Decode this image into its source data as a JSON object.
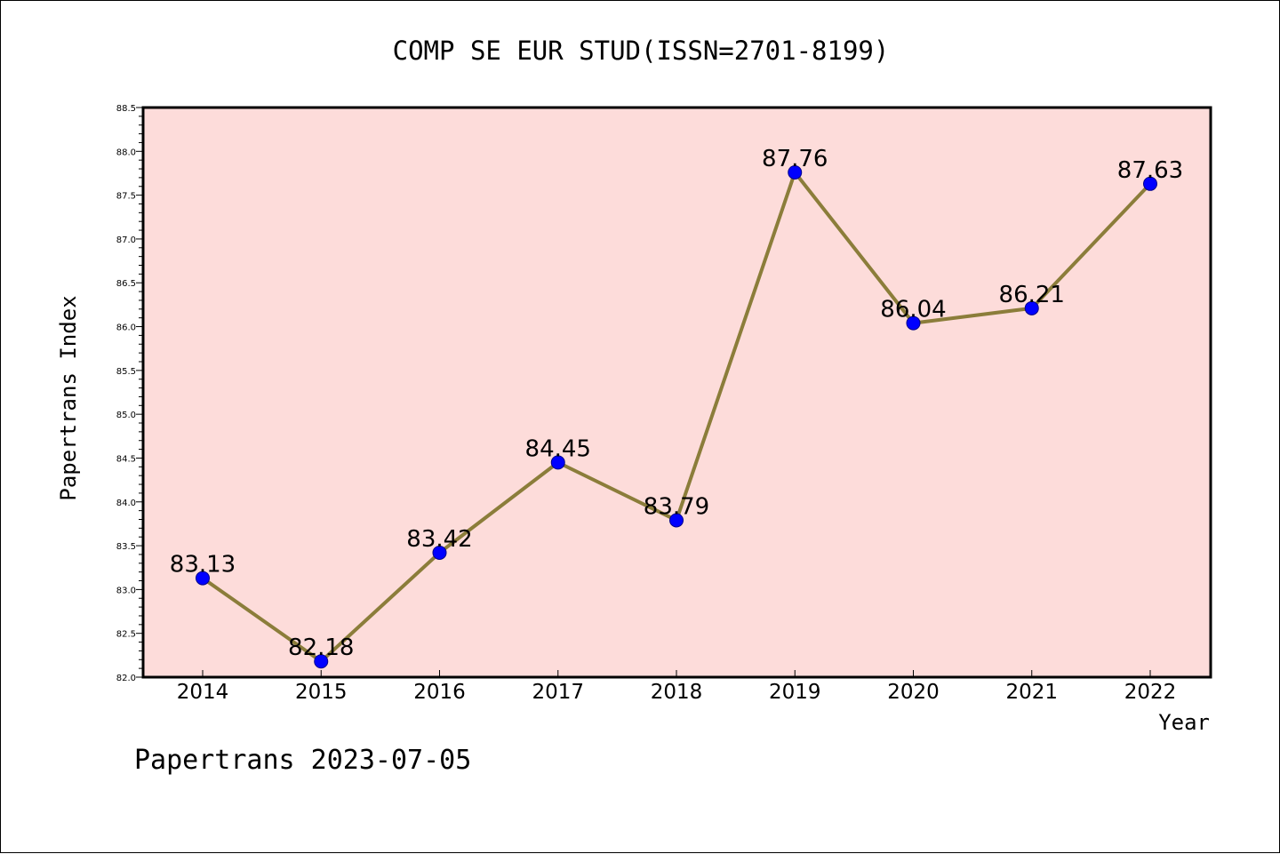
{
  "colors": {
    "plot_background": "#fddcda",
    "line": "#8b7d3a",
    "marker_fill": "#0000ff",
    "marker_stroke": "#00008b",
    "axis": "#000000"
  },
  "footer": "Papertrans 2023-07-05",
  "chart_data": {
    "type": "line",
    "title": "COMP SE EUR STUD(ISSN=2701-8199)",
    "xlabel": "Year",
    "ylabel": "Papertrans Index",
    "categories": [
      "2014",
      "2015",
      "2016",
      "2017",
      "2018",
      "2019",
      "2020",
      "2021",
      "2022"
    ],
    "values": [
      83.13,
      82.18,
      83.42,
      84.45,
      83.79,
      87.76,
      86.04,
      86.21,
      87.63
    ],
    "data_labels": [
      "83.13",
      "82.18",
      "83.42",
      "84.45",
      "83.79",
      "87.76",
      "86.04",
      "86.21",
      "87.63"
    ],
    "ylim": [
      82.0,
      88.5
    ],
    "yticks": [
      "82.0",
      "82.5",
      "83.0",
      "83.5",
      "84.0",
      "84.5",
      "85.0",
      "85.5",
      "86.0",
      "86.5",
      "87.0",
      "87.5",
      "88.0",
      "88.5"
    ],
    "grid": false,
    "legend": "none"
  }
}
